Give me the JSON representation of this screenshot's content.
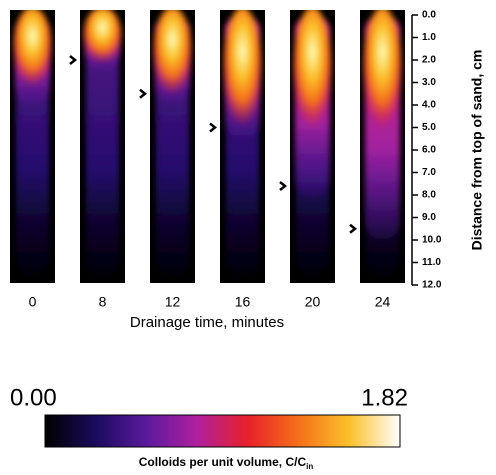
{
  "chart_data": {
    "type": "heatmap-panels",
    "categories": [
      "0",
      "8",
      "12",
      "16",
      "20",
      "24"
    ],
    "x_label": "Drainage time, minutes",
    "y_label": "Distance from top of sand, cm",
    "ylim": [
      0,
      12
    ],
    "yticks": [
      {
        "value": 0,
        "label": "0.0"
      },
      {
        "value": 1,
        "label": "1.0"
      },
      {
        "value": 2,
        "label": "2.0"
      },
      {
        "value": 3,
        "label": "3.0"
      },
      {
        "value": 4,
        "label": "4.0"
      },
      {
        "value": 5,
        "label": "5.0"
      },
      {
        "value": 6,
        "label": "6.0"
      },
      {
        "value": 7,
        "label": "7.0"
      },
      {
        "value": 8,
        "label": "8.0"
      },
      {
        "value": 9,
        "label": "9.0"
      },
      {
        "value": 10,
        "label": "10.0"
      },
      {
        "value": 11,
        "label": "11.0"
      },
      {
        "value": 12,
        "label": "12.0"
      }
    ],
    "front_depth": [
      null,
      2.0,
      3.5,
      5.0,
      7.6,
      9.5
    ],
    "colorbar": {
      "ticks": [
        {
          "value": 0,
          "label": "0.00"
        },
        {
          "value": 1.82,
          "label": "1.82"
        }
      ],
      "colormap": [
        "#000000",
        "#1a0b5e",
        "#5b1a9e",
        "#b0209e",
        "#e8202a",
        "#f5701a",
        "#fbc02a",
        "#ffffff"
      ],
      "label": "Colloids per unit volume, C/C",
      "label_sub": "in"
    }
  }
}
